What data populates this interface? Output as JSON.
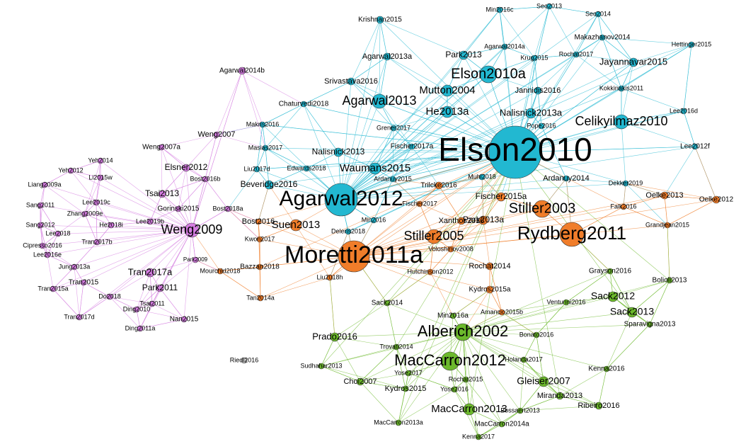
{
  "communities": [
    {
      "color": "#22b8d1",
      "nodes": [
        "Elson2010",
        "Agarwal2012",
        "Elson2010a",
        "Agarwal2013",
        "Celikyilmaz2010",
        "Mutton2004",
        "He2013a",
        "Waumans2015",
        "Nalisnick2013a",
        "Jayannavar2015",
        "Nalisnick2013",
        "Park2013",
        "Jannidis2016",
        "Krishnan2015",
        "Min2016c",
        "Seo2013",
        "Seo2014",
        "Makazhanov2014",
        "Hettinger2015",
        "Agarwal2014a",
        "Krug2015",
        "Rochat2017",
        "Agarwal2013a",
        "Srivastava2016",
        "Chaturvedi2018",
        "Kokkinakis2011",
        "Lee2016d",
        "Lee2012f",
        "Grener2017",
        "Pope2016",
        "Makris2016",
        "Masias2017",
        "Fischer2017a",
        "Liu2017d",
        "Edwards2018",
        "Beveridge2016",
        "Ardanuy2015",
        "Dekker2019",
        "Muhl2018",
        "Min2016",
        "Deleris2018",
        "Ardanuy2014"
      ]
    },
    {
      "color": "#f07d2a",
      "nodes": [
        "Moretti2011a",
        "Rydberg2011",
        "Stiller2003",
        "Stiller2005",
        "Suen2013",
        "Fischer2015a",
        "Park2013a",
        "Xanthos2016",
        "Trilcke2016",
        "Fischer2017",
        "Oelke2013",
        "Oelke2012",
        "Falk2016",
        "Grandjean2015",
        "Kwon2017",
        "Voloshinov2008",
        "Rochat2014",
        "Hutchinson2012",
        "Liu2018h",
        "Kydros2015a",
        "Amancio2015b",
        "Bazzan2018",
        "Mourchid2018",
        "Tan2014a",
        "Bost2016"
      ]
    },
    {
      "color": "#6cb92c",
      "nodes": [
        "Alberich2002",
        "MacCarron2012",
        "MacCarron2013",
        "Gleiser2007",
        "Sack2012",
        "Sack2013",
        "Prado2016",
        "Grayson2016",
        "Bolioli2013",
        "Venturini2016",
        "Sparavigna2013",
        "Sack2014",
        "Min2016a",
        "Bonato2016",
        "Trovati2014",
        "Holanda2017",
        "Kenna2016",
        "Sudhahar2013",
        "Choi2007",
        "Yose2017",
        "Kydros2015",
        "Rochat2015",
        "Yose2016",
        "Miranda2013",
        "Ribeiro2016",
        "Bossaert2013",
        "MacCarron2013a",
        "MacCarron2014a",
        "Kenna2017"
      ]
    },
    {
      "color": "#d47ce0",
      "nodes": [
        "Weng2009",
        "Agarwal2014b",
        "Weng2007",
        "Weng2007a",
        "Elsner2012",
        "Tsai2013",
        "Gorinski2015",
        "Bost2016b",
        "Bost2018a",
        "Yeh2014",
        "Yeh2012",
        "Li2015w",
        "Liang2009a",
        "Sang2011",
        "Zhang2009e",
        "Lee2019c",
        "Lee2019b",
        "He2018i",
        "Sang2012",
        "Lee2018",
        "Tran2017b",
        "Cipresso2016",
        "Lee2016e",
        "Tran2017a",
        "Park2011",
        "Park2009",
        "Jung2013a",
        "Tran2015",
        "Tsai2011",
        "Tran2015a",
        "Do2018",
        "Ding2010",
        "Tran2017d",
        "Nan2015",
        "Ding2011a"
      ]
    },
    {
      "color": "#cccccc",
      "nodes": [
        "Riedl2016"
      ]
    }
  ]
}
